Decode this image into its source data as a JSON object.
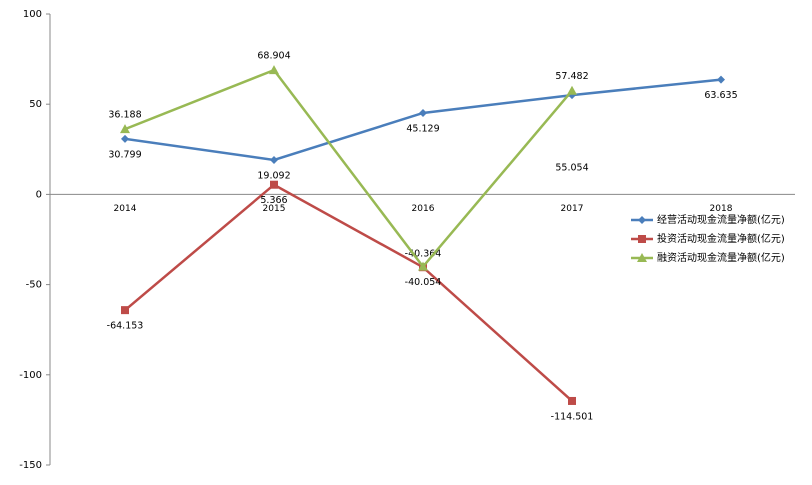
{
  "chart_data": {
    "type": "line",
    "categories": [
      "2014",
      "2015",
      "2016",
      "2017",
      "2018"
    ],
    "series": [
      {
        "name": "经营活动现金流量净额(亿元)",
        "color": "#4a7ebb",
        "marker": "diamond",
        "values": [
          30.799,
          19.092,
          45.129,
          55.054,
          63.635
        ]
      },
      {
        "name": "投资活动现金流量净额(亿元)",
        "color": "#be4b48",
        "marker": "square",
        "values": [
          -64.153,
          5.366,
          -40.364,
          -114.501,
          null
        ]
      },
      {
        "name": "融资活动现金流量净额(亿元)",
        "color": "#98b954",
        "marker": "triangle",
        "values": [
          36.188,
          68.904,
          -40.054,
          57.482,
          null
        ]
      }
    ],
    "ylim": [
      -150,
      100
    ],
    "yticks": [
      -150,
      -100,
      -50,
      0,
      50,
      100
    ],
    "legend": "right"
  }
}
